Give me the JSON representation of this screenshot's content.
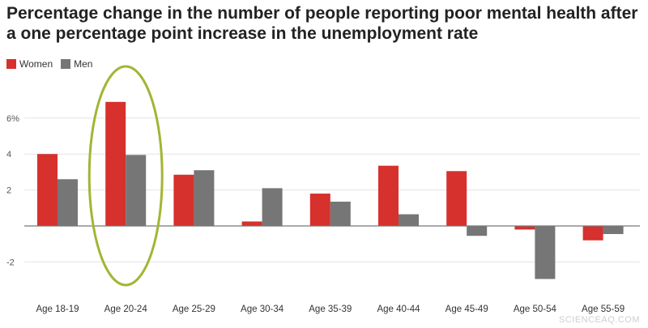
{
  "chart_data": {
    "type": "bar",
    "title_line1": "Percentage change in the number of people reporting poor mental health after",
    "title_line2": "a one percentage point increase in the unemployment rate",
    "categories": [
      "Age 18-19",
      "Age 20-24",
      "Age 25-29",
      "Age 30-34",
      "Age 35-39",
      "Age 40-44",
      "Age 45-49",
      "Age 50-54",
      "Age 55-59"
    ],
    "series": [
      {
        "name": "Women",
        "color": "#d6312d",
        "values": [
          4.0,
          6.9,
          2.85,
          0.25,
          1.8,
          3.35,
          3.05,
          -0.2,
          -0.8
        ]
      },
      {
        "name": "Men",
        "color": "#767676",
        "values": [
          2.6,
          3.95,
          3.1,
          2.1,
          1.35,
          0.65,
          -0.55,
          -2.95,
          -0.45
        ]
      }
    ],
    "y_ticks": [
      -2,
      2,
      4,
      6
    ],
    "y_tick_labels": [
      "-2",
      "2",
      "4",
      "6%"
    ],
    "ylim": [
      -3,
      7
    ],
    "grid": true,
    "legend_position": "top-left",
    "highlight_category": "Age 20-24",
    "highlight_color": "#a2b533"
  },
  "watermark": "SCIENCEAQ.COM"
}
